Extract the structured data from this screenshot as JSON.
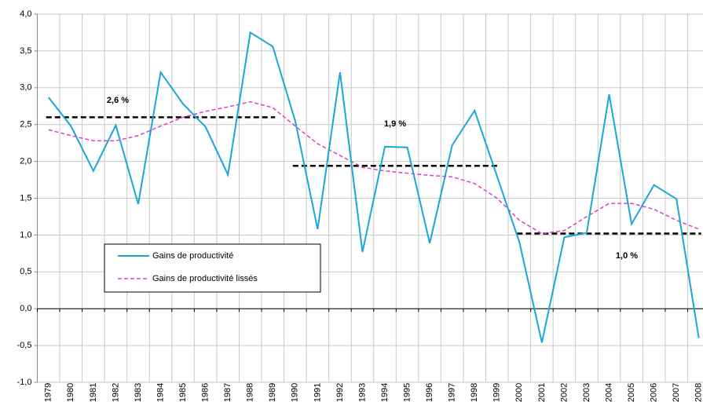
{
  "chart_data": {
    "type": "line",
    "categories": [
      "1979",
      "1980",
      "1981",
      "1982",
      "1983",
      "1984",
      "1985",
      "1986",
      "1987",
      "1988",
      "1989",
      "1990",
      "1991",
      "1992",
      "1993",
      "1994",
      "1995",
      "1996",
      "1997",
      "1998",
      "1999",
      "2000",
      "2001",
      "2002",
      "2003",
      "2004",
      "2005",
      "2006",
      "2007",
      "2008"
    ],
    "series": [
      {
        "name": "Gains de productivité",
        "color": "#1aa7d8",
        "dash": false,
        "values": [
          2.87,
          2.48,
          1.87,
          2.49,
          1.42,
          3.21,
          2.78,
          2.47,
          1.82,
          3.75,
          3.56,
          2.55,
          1.08,
          3.21,
          0.77,
          2.2,
          2.19,
          0.89,
          2.22,
          2.69,
          1.8,
          0.9,
          -0.46,
          0.97,
          1.03,
          2.91,
          1.15,
          1.68,
          1.49,
          -0.4
        ]
      },
      {
        "name": "Gains de productivité lissés",
        "color": "#e040c0",
        "dash": true,
        "values": [
          2.43,
          2.35,
          2.28,
          2.28,
          2.35,
          2.48,
          2.6,
          2.68,
          2.74,
          2.81,
          2.73,
          2.48,
          2.24,
          2.08,
          1.92,
          1.87,
          1.84,
          1.81,
          1.79,
          1.7,
          1.5,
          1.2,
          1.02,
          1.06,
          1.25,
          1.43,
          1.43,
          1.35,
          1.2,
          1.08
        ]
      }
    ],
    "averages": [
      {
        "label": "2,6 %",
        "value": 2.6,
        "from": 0,
        "to": 10
      },
      {
        "label": "1,9 %",
        "value": 1.94,
        "from": 11,
        "to": 20
      },
      {
        "label": "1,0 %",
        "value": 1.02,
        "from": 21,
        "to": 29
      }
    ],
    "ylim": [
      -1,
      4
    ],
    "yticks": [
      {
        "value": -1,
        "label": "-1,0"
      },
      {
        "value": -0.5,
        "label": "-0,5"
      },
      {
        "value": 0,
        "label": "0,0"
      },
      {
        "value": 0.5,
        "label": "0,5"
      },
      {
        "value": 1,
        "label": "1,0"
      },
      {
        "value": 1.5,
        "label": "1,5"
      },
      {
        "value": 2,
        "label": "2,0"
      },
      {
        "value": 2.5,
        "label": "2,5"
      },
      {
        "value": 3,
        "label": "3,0"
      },
      {
        "value": 3.5,
        "label": "3,5"
      },
      {
        "value": 4,
        "label": "4,0"
      }
    ],
    "grid": true
  }
}
